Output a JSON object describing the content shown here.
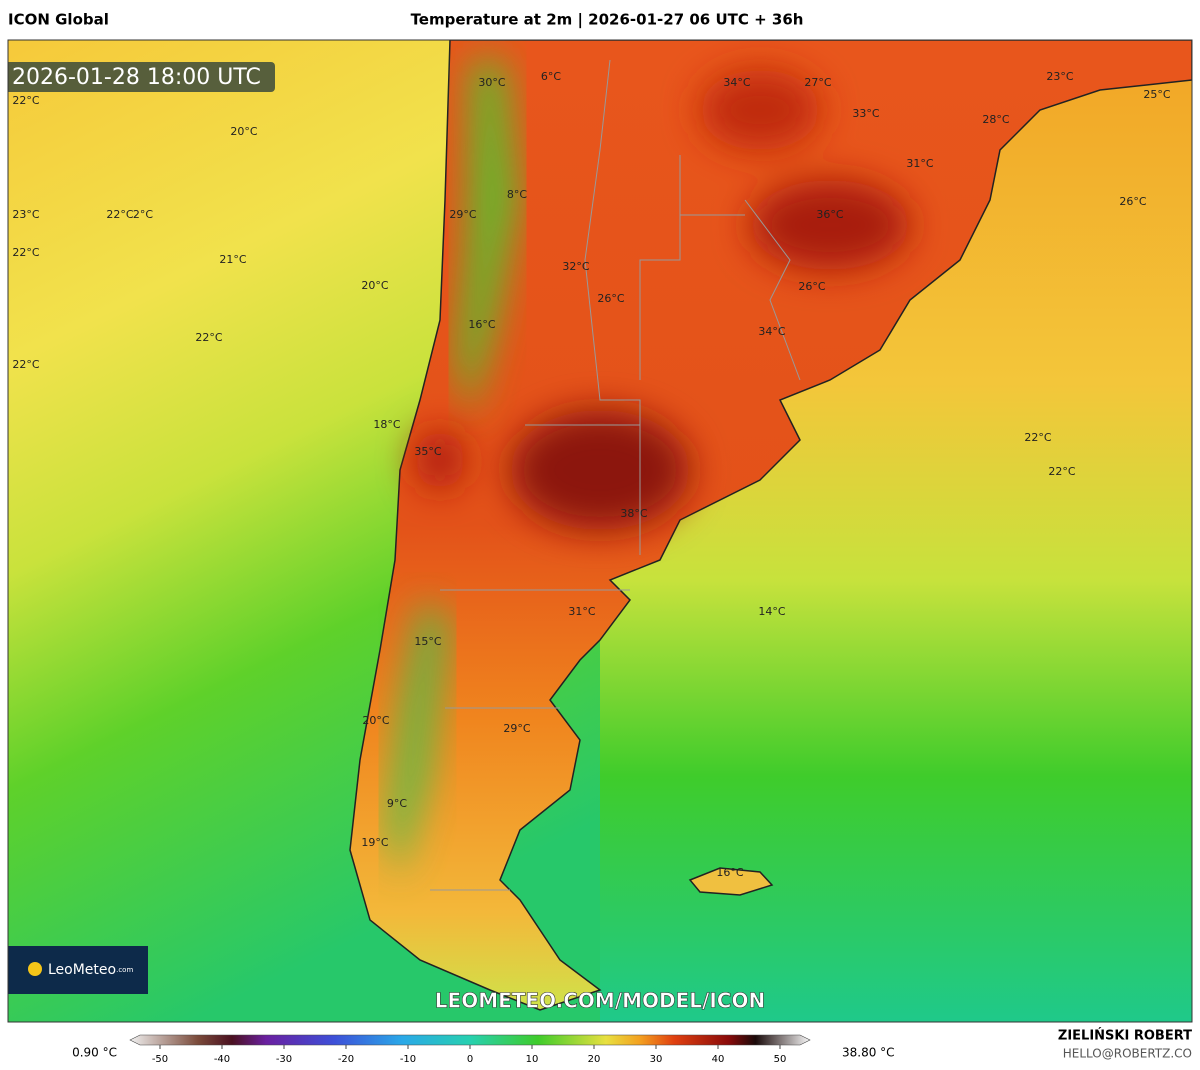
{
  "header": {
    "model": "ICON Global",
    "title": "Temperature at 2m | 2026-01-27 06 UTC + 36h"
  },
  "map": {
    "valid_time": "2026-01-28 18:00 UTC",
    "labels": [
      "30°C",
      "6°C",
      "34°C",
      "27°C",
      "23°C",
      "25°C",
      "22°C",
      "20°C",
      "33°C",
      "28°C",
      "31°C",
      "8°C",
      "23°C",
      "22°C",
      "2°C",
      "29°C",
      "36°C",
      "26°C",
      "22°C",
      "21°C",
      "32°C",
      "20°C",
      "26°C",
      "26°C",
      "16°C",
      "34°C",
      "22°C",
      "22°C",
      "18°C",
      "22°C",
      "35°C",
      "22°C",
      "38°C",
      "31°C",
      "14°C",
      "15°C",
      "20°C",
      "29°C",
      "9°C",
      "19°C",
      "16°C"
    ],
    "watermark": "LEOMETEO.COM/MODEL/ICON",
    "logo": "LeoMeteo",
    "logo_suffix": ".com"
  },
  "legend": {
    "min_label": "0.90 °C",
    "max_label": "38.80 °C",
    "ticks": [
      -50,
      -40,
      -30,
      -20,
      -10,
      0,
      10,
      20,
      30,
      40,
      50
    ]
  },
  "footer": {
    "author": "ZIELIŃSKI ROBERT",
    "email": "HELLO@ROBERTZ.CO"
  }
}
